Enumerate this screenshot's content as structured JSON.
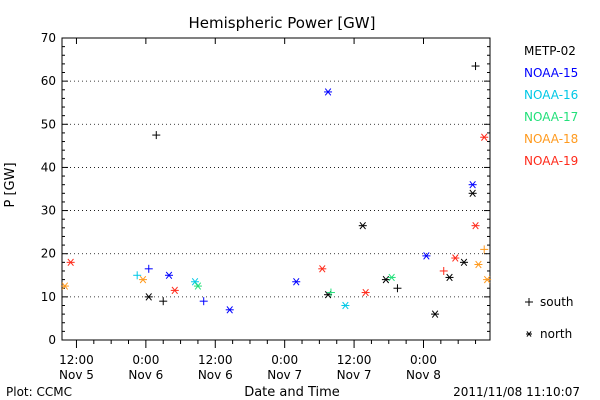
{
  "chart_data": {
    "type": "scatter",
    "title": "Hemispheric Power [GW]",
    "xlabel": "Date and Time",
    "ylabel": "P [GW]",
    "ylim": [
      0,
      70
    ],
    "yticks": [
      0,
      10,
      20,
      30,
      40,
      50,
      60,
      70
    ],
    "xlim": [
      "2011-11-05 09:30",
      "2011-11-08 11:30"
    ],
    "xticks": [
      {
        "x": "2011-11-05 12:00",
        "line1": "12:00",
        "line2": "Nov 5"
      },
      {
        "x": "2011-11-06 00:00",
        "line1": "0:00",
        "line2": "Nov 6"
      },
      {
        "x": "2011-11-06 12:00",
        "line1": "12:00",
        "line2": "Nov 6"
      },
      {
        "x": "2011-11-07 00:00",
        "line1": "0:00",
        "line2": "Nov 7"
      },
      {
        "x": "2011-11-07 12:00",
        "line1": "12:00",
        "line2": "Nov 7"
      },
      {
        "x": "2011-11-08 00:00",
        "line1": "0:00",
        "line2": "Nov 8"
      }
    ],
    "legend": {
      "placement": "right",
      "series_labels": [
        "METP-02",
        "NOAA-15",
        "NOAA-16",
        "NOAA-17",
        "NOAA-18",
        "NOAA-19"
      ],
      "marker_keys": [
        {
          "symbol": "+",
          "label": "south"
        },
        {
          "symbol": "*",
          "label": "north"
        }
      ]
    },
    "footer": {
      "left": "Plot: CCMC",
      "right": "2011/11/08 11:10:07"
    },
    "series": [
      {
        "name": "METP-02",
        "color": "#000000",
        "points": [
          {
            "x": "2011-11-06 01:48",
            "y": 47.5,
            "marker": "south"
          },
          {
            "x": "2011-11-07 13:30",
            "y": 26.5,
            "marker": "north"
          },
          {
            "x": "2011-11-08 09:00",
            "y": 63.5,
            "marker": "south"
          },
          {
            "x": "2011-11-08 08:30",
            "y": 34,
            "marker": "north"
          },
          {
            "x": "2011-11-06 00:30",
            "y": 10,
            "marker": "north"
          },
          {
            "x": "2011-11-06 03:00",
            "y": 9,
            "marker": "south"
          },
          {
            "x": "2011-11-07 07:30",
            "y": 10.5,
            "marker": "north"
          },
          {
            "x": "2011-11-07 17:30",
            "y": 14,
            "marker": "north"
          },
          {
            "x": "2011-11-07 19:30",
            "y": 12,
            "marker": "south"
          },
          {
            "x": "2011-11-08 04:30",
            "y": 14.5,
            "marker": "north"
          },
          {
            "x": "2011-11-08 07:00",
            "y": 18,
            "marker": "north"
          },
          {
            "x": "2011-11-08 02:00",
            "y": 6,
            "marker": "north"
          }
        ]
      },
      {
        "name": "NOAA-15",
        "color": "#0000ff",
        "points": [
          {
            "x": "2011-11-07 07:30",
            "y": 57.5,
            "marker": "north"
          },
          {
            "x": "2011-11-08 08:30",
            "y": 36,
            "marker": "north"
          },
          {
            "x": "2011-11-08 00:30",
            "y": 19.5,
            "marker": "north"
          },
          {
            "x": "2011-11-06 04:00",
            "y": 15,
            "marker": "north"
          },
          {
            "x": "2011-11-06 00:30",
            "y": 16.5,
            "marker": "south"
          },
          {
            "x": "2011-11-07 02:00",
            "y": 13.5,
            "marker": "north"
          },
          {
            "x": "2011-11-06 14:30",
            "y": 7,
            "marker": "north"
          },
          {
            "x": "2011-11-06 10:00",
            "y": 9,
            "marker": "south"
          }
        ]
      },
      {
        "name": "NOAA-16",
        "color": "#00c8e6",
        "points": [
          {
            "x": "2011-11-06 08:30",
            "y": 13.5,
            "marker": "north"
          },
          {
            "x": "2011-11-05 22:30",
            "y": 15,
            "marker": "south"
          },
          {
            "x": "2011-11-07 10:30",
            "y": 8,
            "marker": "north"
          }
        ]
      },
      {
        "name": "NOAA-17",
        "color": "#22e07a",
        "points": [
          {
            "x": "2011-11-07 18:30",
            "y": 14.5,
            "marker": "north"
          },
          {
            "x": "2011-11-06 09:00",
            "y": 12.5,
            "marker": "north"
          },
          {
            "x": "2011-11-07 08:00",
            "y": 11,
            "marker": "south"
          }
        ]
      },
      {
        "name": "NOAA-18",
        "color": "#ff9a1e",
        "points": [
          {
            "x": "2011-11-05 10:00",
            "y": 12.5,
            "marker": "north"
          },
          {
            "x": "2011-11-08 10:30",
            "y": 21,
            "marker": "south"
          },
          {
            "x": "2011-11-08 11:00",
            "y": 14,
            "marker": "north"
          },
          {
            "x": "2011-11-08 09:30",
            "y": 17.5,
            "marker": "north"
          },
          {
            "x": "2011-11-05 23:30",
            "y": 14,
            "marker": "north"
          }
        ]
      },
      {
        "name": "NOAA-19",
        "color": "#ff2a1a",
        "points": [
          {
            "x": "2011-11-08 10:30",
            "y": 47,
            "marker": "north"
          },
          {
            "x": "2011-11-08 09:00",
            "y": 26.5,
            "marker": "north"
          },
          {
            "x": "2011-11-05 11:00",
            "y": 18,
            "marker": "north"
          },
          {
            "x": "2011-11-07 06:30",
            "y": 16.5,
            "marker": "north"
          },
          {
            "x": "2011-11-06 05:00",
            "y": 11.5,
            "marker": "north"
          },
          {
            "x": "2011-11-08 05:30",
            "y": 19,
            "marker": "north"
          },
          {
            "x": "2011-11-08 03:30",
            "y": 16,
            "marker": "south"
          },
          {
            "x": "2011-11-07 14:00",
            "y": 11,
            "marker": "north"
          }
        ]
      }
    ]
  }
}
